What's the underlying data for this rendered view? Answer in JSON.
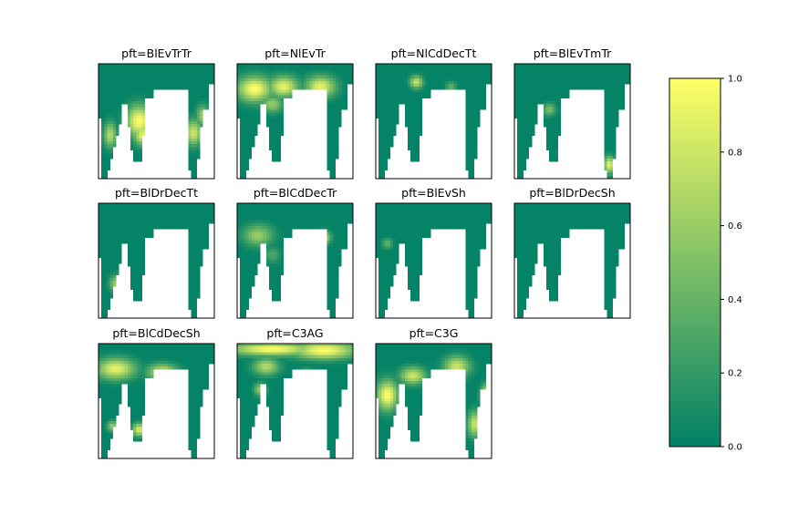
{
  "chart_data": {
    "type": "heatmap",
    "grid": {
      "rows": 3,
      "cols": 4
    },
    "panels": [
      {
        "title": "pft=BlEvTrTr",
        "hotspots": [
          [
            0.35,
            0.5,
            0.12,
            0.15,
            1.0
          ],
          [
            0.38,
            0.62,
            0.08,
            0.1,
            0.9
          ],
          [
            0.1,
            0.62,
            0.06,
            0.12,
            0.7
          ],
          [
            0.82,
            0.6,
            0.08,
            0.12,
            0.8
          ],
          [
            0.9,
            0.45,
            0.06,
            0.1,
            0.6
          ]
        ]
      },
      {
        "title": "pft=NlEvTr",
        "hotspots": [
          [
            0.15,
            0.22,
            0.16,
            0.12,
            1.0
          ],
          [
            0.4,
            0.2,
            0.14,
            0.1,
            0.9
          ],
          [
            0.72,
            0.2,
            0.14,
            0.1,
            0.9
          ],
          [
            0.3,
            0.35,
            0.1,
            0.08,
            0.6
          ]
        ]
      },
      {
        "title": "pft=NlCdDecTt",
        "hotspots": [
          [
            0.35,
            0.16,
            0.06,
            0.06,
            0.8
          ],
          [
            0.65,
            0.2,
            0.05,
            0.05,
            0.4
          ]
        ]
      },
      {
        "title": "pft=BlEvTmTr",
        "hotspots": [
          [
            0.45,
            0.78,
            0.06,
            0.06,
            0.9
          ],
          [
            0.82,
            0.88,
            0.05,
            0.08,
            0.9
          ],
          [
            0.3,
            0.4,
            0.06,
            0.06,
            0.5
          ]
        ]
      },
      {
        "title": "pft=BlDrDecTt",
        "hotspots": [
          [
            0.15,
            0.7,
            0.06,
            0.08,
            0.6
          ],
          [
            0.7,
            0.3,
            0.05,
            0.05,
            0.3
          ]
        ]
      },
      {
        "title": "pft=BlCdDecTr",
        "hotspots": [
          [
            0.18,
            0.28,
            0.14,
            0.1,
            0.6
          ],
          [
            0.75,
            0.3,
            0.06,
            0.06,
            0.8
          ],
          [
            0.3,
            0.45,
            0.08,
            0.08,
            0.3
          ]
        ]
      },
      {
        "title": "pft=BlEvSh",
        "hotspots": [
          [
            0.1,
            0.35,
            0.05,
            0.05,
            0.4
          ]
        ]
      },
      {
        "title": "pft=BlDrDecSh",
        "hotspots": []
      },
      {
        "title": "pft=BlCdDecSh",
        "hotspots": [
          [
            0.15,
            0.22,
            0.18,
            0.1,
            0.9
          ],
          [
            0.55,
            0.25,
            0.14,
            0.08,
            0.8
          ],
          [
            0.35,
            0.75,
            0.06,
            0.06,
            0.9
          ],
          [
            0.12,
            0.72,
            0.05,
            0.05,
            0.6
          ],
          [
            0.7,
            0.48,
            0.05,
            0.05,
            0.7
          ]
        ]
      },
      {
        "title": "pft=C3AG",
        "hotspots": [
          [
            0.3,
            0.05,
            0.4,
            0.06,
            1.0
          ],
          [
            0.75,
            0.06,
            0.3,
            0.08,
            1.0
          ],
          [
            0.25,
            0.2,
            0.12,
            0.08,
            0.7
          ],
          [
            0.6,
            0.3,
            0.08,
            0.08,
            0.5
          ],
          [
            0.2,
            0.4,
            0.06,
            0.06,
            0.6
          ]
        ]
      },
      {
        "title": "pft=C3G",
        "hotspots": [
          [
            0.1,
            0.45,
            0.1,
            0.14,
            1.0
          ],
          [
            0.32,
            0.28,
            0.12,
            0.08,
            0.8
          ],
          [
            0.7,
            0.2,
            0.12,
            0.1,
            0.8
          ],
          [
            0.45,
            0.7,
            0.06,
            0.08,
            0.6
          ],
          [
            0.85,
            0.7,
            0.06,
            0.12,
            0.8
          ],
          [
            0.95,
            0.45,
            0.05,
            0.1,
            0.9
          ]
        ]
      }
    ],
    "colorbar": {
      "min": 0.0,
      "max": 1.0,
      "ticks": [
        "0.0",
        "0.2",
        "0.4",
        "0.6",
        "0.8",
        "1.0"
      ]
    },
    "colormap": {
      "low": "#008066",
      "high": "#ffff66"
    }
  }
}
